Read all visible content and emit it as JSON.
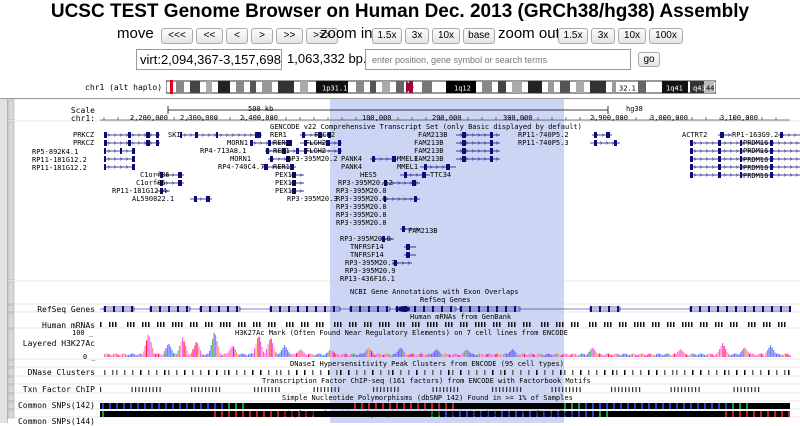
{
  "title": "UCSC TEST Genome Browser on Human Dec. 2013 (GRCh38/hg38) Assembly",
  "nav": {
    "move_label": "move",
    "move_buttons": [
      "<<<",
      "<<",
      "<",
      ">",
      ">>",
      ">>>"
    ],
    "zoom_in_label": "zoom in",
    "zoom_in_buttons": [
      "1.5x",
      "3x",
      "10x",
      "base"
    ],
    "zoom_out_label": "zoom out",
    "zoom_out_buttons": [
      "1.5x",
      "3x",
      "10x",
      "100x"
    ]
  },
  "position": {
    "value": "virt:2,094,367-3,157,698",
    "size": "1,063,332 bp.",
    "search_placeholder": "enter position, gene symbol or search terms",
    "go_label": "go"
  },
  "ideogram": {
    "label": "chr1 (alt haplo)",
    "bands": [
      "1p31.1",
      "1q12",
      "32.1",
      "1q41",
      "q43",
      "44"
    ]
  },
  "scale": {
    "scale_label": "Scale",
    "chrom_label": "chr1:",
    "bar_text": "500 kb",
    "assembly": "hg38",
    "ticks": [
      "2,200,000",
      "2,300,000",
      "2,400,000",
      "100,000",
      "200,000",
      "300,000",
      "2,900,000",
      "3,000,000",
      "3,100,000"
    ]
  },
  "tracks": {
    "gencode_title": "GENCODE v22 Comprehensive Transcript Set (only Basic displayed by default)",
    "genes_left": [
      "PRKCZ",
      "PRKCZ",
      "RP5-892K4.1",
      "RP11-181G12.2",
      "RP11-181G12.2"
    ],
    "genes_right": [
      "ACTRT2",
      "RP1-163G9.2",
      "PRDM16",
      "PRDM16",
      "PRDM16",
      "PRDM16",
      "PRDM16"
    ],
    "gene_labels": [
      "SKI",
      "RER1",
      "MORN1",
      "RP4-713A8.1",
      "MORN1",
      "RP4-740C4.7",
      "C1orf86",
      "C1orf86",
      "RP11-181G12.4",
      "AL590822.1",
      "FLCH2",
      "FLCH2",
      "FLCH2",
      "PANK4",
      "RER1",
      "RER1",
      "RP3-395M20.2",
      "RER1",
      "PEX10",
      "PEX10",
      "PEX10",
      "RP3-395M20.3",
      "FAM213B",
      "FAM213B",
      "FAM213B",
      "FAM213B",
      "MMEL1",
      "MMEL1",
      "TTC34",
      "PANK4",
      "HES5",
      "RP3-395M20.12",
      "RP3-395M20.8",
      "RP3-395M20.8",
      "RP3-395M20.8",
      "RP3-395M20.8",
      "RP3-395M20.8",
      "FAM213B",
      "RP3-395M20.8",
      "TNFRSF14",
      "TNFRSF14",
      "RP3-395M20.7",
      "RP3-395M20.9",
      "RP13-436F16.1",
      "RP11-740P5.2",
      "RP11-740P5.3"
    ],
    "ncbi_title": "NCBI Gene Annotations with Exon Overlaps",
    "refseq_center": "RefSeq Genes",
    "refseq_label": "RefSeq Genes",
    "mrna_center": "Human mRNAs from GenBank",
    "mrna_label": "Human mRNAs",
    "h3k27_title": "H3K27Ac Mark (Often Found Near Regulatory Elements) on 7 cell lines from ENCODE",
    "h3k27_label": "Layered H3K27Ac",
    "h3k27_max": "100 _",
    "h3k27_min": "0 _",
    "dnase_title": "DNaseI Hypersensitivity Peak Clusters from ENCODE (95 cell types)",
    "dnase_label": "DNase Clusters",
    "txn_title": "Transcription Factor ChIP-seq (161 factors) from ENCODE with Factorbook Motifs",
    "txn_label": "Txn Factor ChIP",
    "snp142_title": "Simple Nucleotide Polymorphisms (dbSNP 142) Found in >= 1% of Samples",
    "snp142_label": "Common SNPs(142)",
    "snp144_title": "Simple Nucleotide Polymorphisms (dbSNP 144) Found in >= 1% of Samples",
    "snp144_label": "Common SNPs(144)"
  },
  "colors": {
    "highlight": "#ccd6f4",
    "gene": "#0c0c78",
    "ideogram_red": "#e0001a",
    "h3k27_series": [
      "#ff8080",
      "#ff0000",
      "#ffb040",
      "#40c040",
      "#4080ff",
      "#8040ff",
      "#ff40ff"
    ]
  }
}
